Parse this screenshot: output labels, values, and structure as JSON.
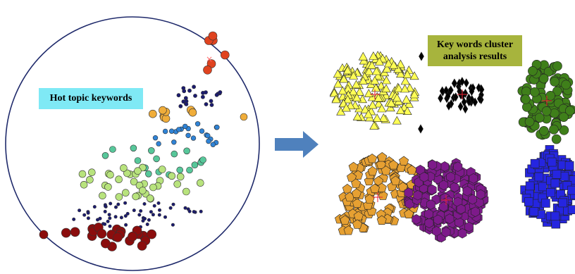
{
  "left_panel": {
    "label": "Hot topic keywords"
  },
  "right_panel": {
    "label_line1": "Key words cluster",
    "label_line2": "analysis results"
  },
  "colors": {
    "circle_outline": "#1f2a6b",
    "arrow": "#4f81bd",
    "hot_label_bg": "#7fe9f5",
    "cluster_label_bg": "#a7b43d",
    "red": "#e0431f",
    "darkred": "#8b0d0d",
    "orange": "#f0ad3a",
    "navy": "#1b1b70",
    "blue": "#2f83d6",
    "green": "#b8e37d",
    "teal": "#57c79a",
    "yellow": "#ffff55",
    "black": "#000000",
    "olive": "#3f7f1a",
    "gold": "#e6a032",
    "purple": "#7d1a8a",
    "royal": "#2525e0"
  },
  "clusters": [
    {
      "name": "yellow-triangles",
      "shape": "triangle"
    },
    {
      "name": "black-diamonds",
      "shape": "diamond"
    },
    {
      "name": "green-circles",
      "shape": "circle"
    },
    {
      "name": "orange-pentagons",
      "shape": "pentagon"
    },
    {
      "name": "purple-hexagons",
      "shape": "hexagon"
    },
    {
      "name": "blue-squares",
      "shape": "square"
    }
  ]
}
